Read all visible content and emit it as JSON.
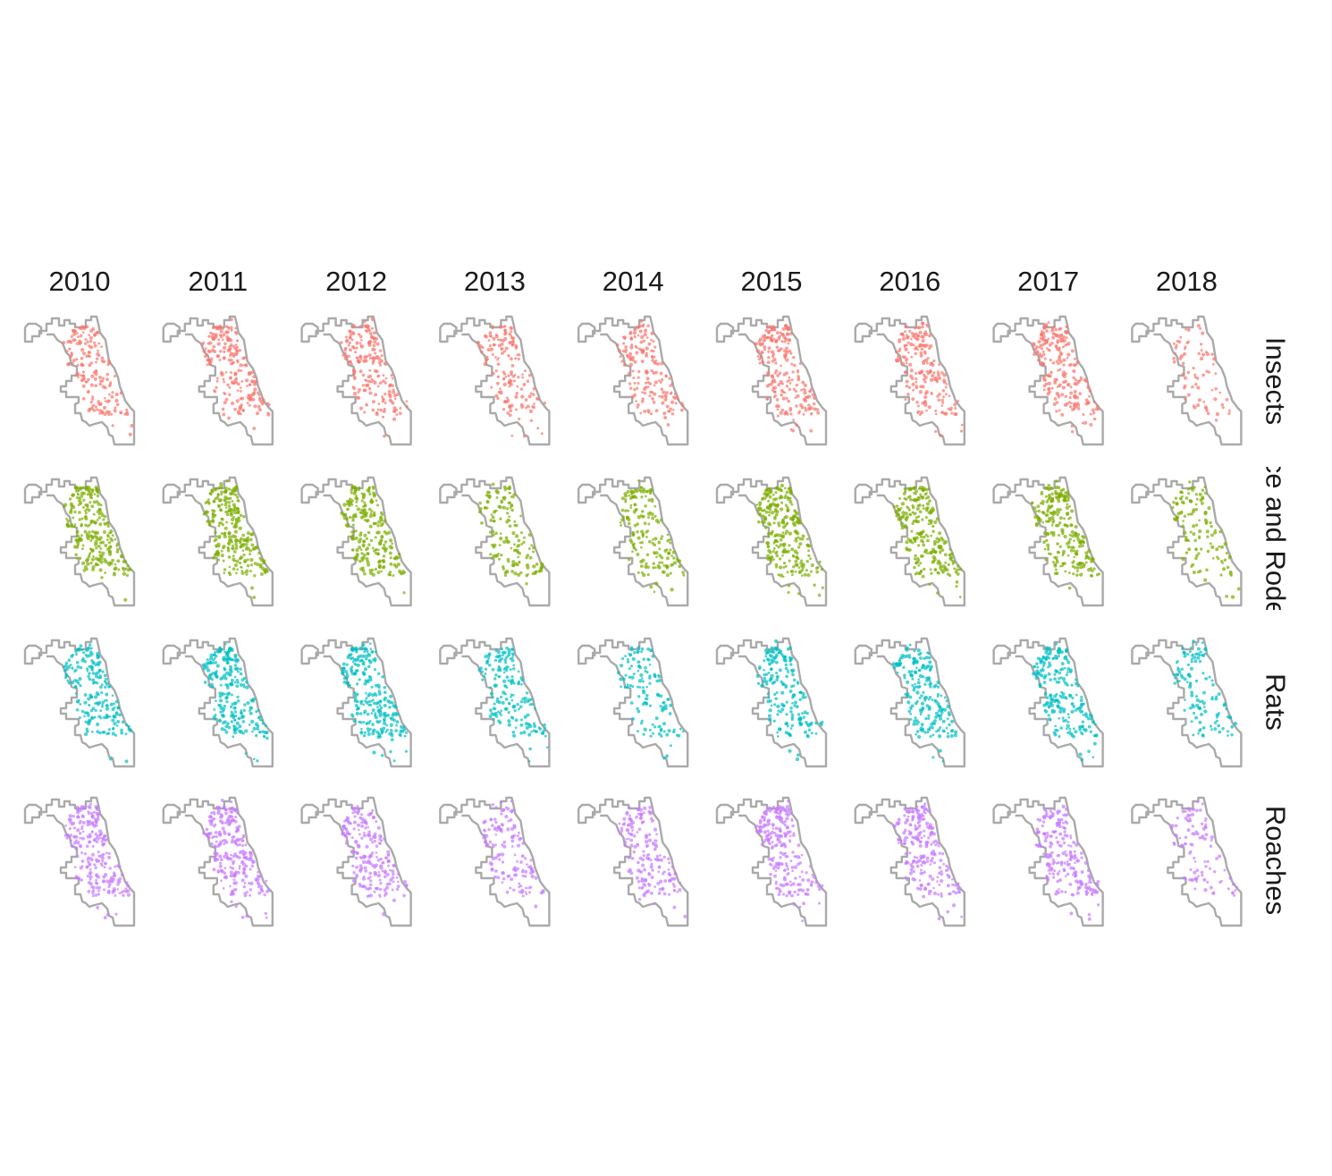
{
  "chart_data": {
    "type": "scatter",
    "layout": "small-multiples",
    "columns": [
      "2010",
      "2011",
      "2012",
      "2013",
      "2014",
      "2015",
      "2016",
      "2017",
      "2018"
    ],
    "rows": [
      {
        "label": "Insects",
        "color": "#F8766D"
      },
      {
        "label": "Mice and Rodents",
        "color": "#7CAE00"
      },
      {
        "label": "Rats",
        "color": "#00BFC4"
      },
      {
        "label": "Roaches",
        "color": "#C77CFF"
      }
    ],
    "outline_color": "#AAAAAA",
    "title": "",
    "xlabel": "",
    "ylabel": "",
    "grid": false,
    "legend": "none"
  }
}
